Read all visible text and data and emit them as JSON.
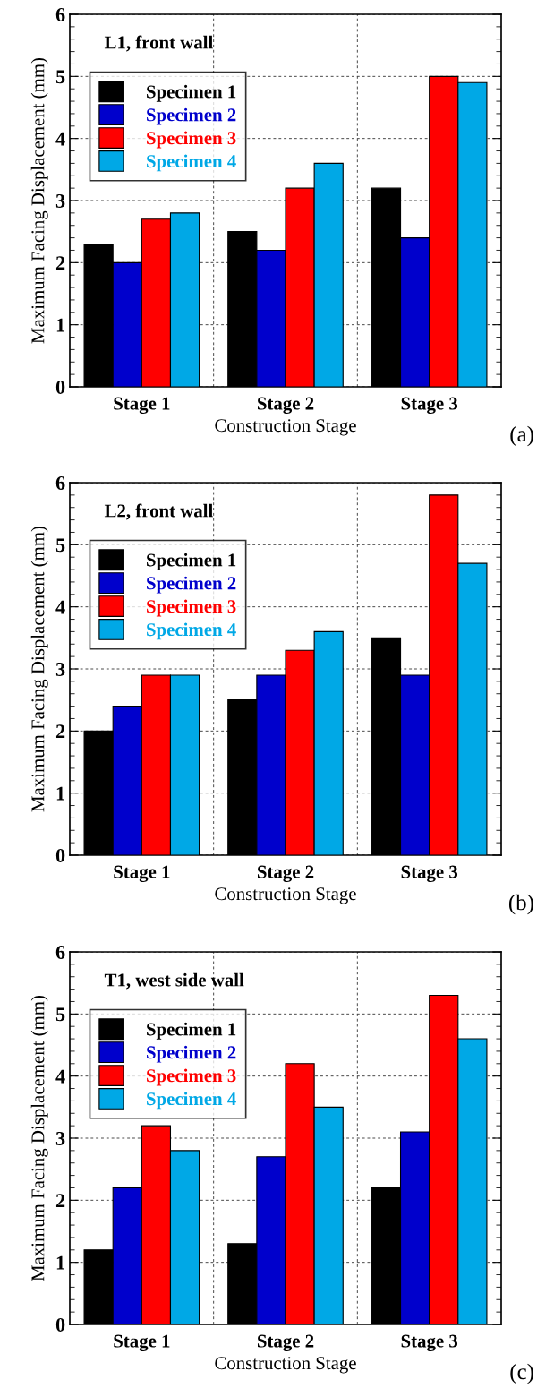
{
  "chart_data": [
    {
      "type": "bar",
      "title": "L1, front wall",
      "xlabel": "Construction Stage",
      "ylabel": "Maximum Facing Displacement (mm)",
      "categories": [
        "Stage 1",
        "Stage 2",
        "Stage 3"
      ],
      "ylim": [
        0,
        6
      ],
      "yticks": [
        0,
        1,
        2,
        3,
        4,
        5,
        6
      ],
      "grid": true,
      "legend": "top left",
      "annotations": [
        "(a)"
      ],
      "series": [
        {
          "name": "Specimen 1",
          "color": "#000000",
          "values": [
            2.3,
            2.5,
            3.2
          ]
        },
        {
          "name": "Specimen 2",
          "color": "#0000cc",
          "values": [
            2.0,
            2.2,
            2.4
          ]
        },
        {
          "name": "Specimen 3",
          "color": "#ff0000",
          "values": [
            2.7,
            3.2,
            5.0
          ]
        },
        {
          "name": "Specimen 4",
          "color": "#00a8e6",
          "values": [
            2.8,
            3.6,
            4.9
          ]
        }
      ]
    },
    {
      "type": "bar",
      "title": "L2, front wall",
      "xlabel": "Construction Stage",
      "ylabel": "Maximum Facing Displacement (mm)",
      "categories": [
        "Stage 1",
        "Stage 2",
        "Stage 3"
      ],
      "ylim": [
        0,
        6
      ],
      "yticks": [
        0,
        1,
        2,
        3,
        4,
        5,
        6
      ],
      "grid": true,
      "legend": "top left",
      "annotations": [
        "(b)"
      ],
      "series": [
        {
          "name": "Specimen 1",
          "color": "#000000",
          "values": [
            2.0,
            2.5,
            3.5
          ]
        },
        {
          "name": "Specimen 2",
          "color": "#0000cc",
          "values": [
            2.4,
            2.9,
            2.9
          ]
        },
        {
          "name": "Specimen 3",
          "color": "#ff0000",
          "values": [
            2.9,
            3.3,
            5.8
          ]
        },
        {
          "name": "Specimen 4",
          "color": "#00a8e6",
          "values": [
            2.9,
            3.6,
            4.7
          ]
        }
      ]
    },
    {
      "type": "bar",
      "title": "T1, west side wall",
      "xlabel": "Construction Stage",
      "ylabel": "Maximum Facing Displacement (mm)",
      "categories": [
        "Stage 1",
        "Stage 2",
        "Stage 3"
      ],
      "ylim": [
        0,
        6
      ],
      "yticks": [
        0,
        1,
        2,
        3,
        4,
        5,
        6
      ],
      "grid": true,
      "legend": "top left",
      "annotations": [
        "(c)"
      ],
      "series": [
        {
          "name": "Specimen 1",
          "color": "#000000",
          "values": [
            1.2,
            1.3,
            2.2
          ]
        },
        {
          "name": "Specimen 2",
          "color": "#0000cc",
          "values": [
            2.2,
            2.7,
            3.1
          ]
        },
        {
          "name": "Specimen 3",
          "color": "#ff0000",
          "values": [
            3.2,
            4.2,
            5.3
          ]
        },
        {
          "name": "Specimen 4",
          "color": "#00a8e6",
          "values": [
            2.8,
            3.5,
            4.6
          ]
        }
      ]
    }
  ]
}
